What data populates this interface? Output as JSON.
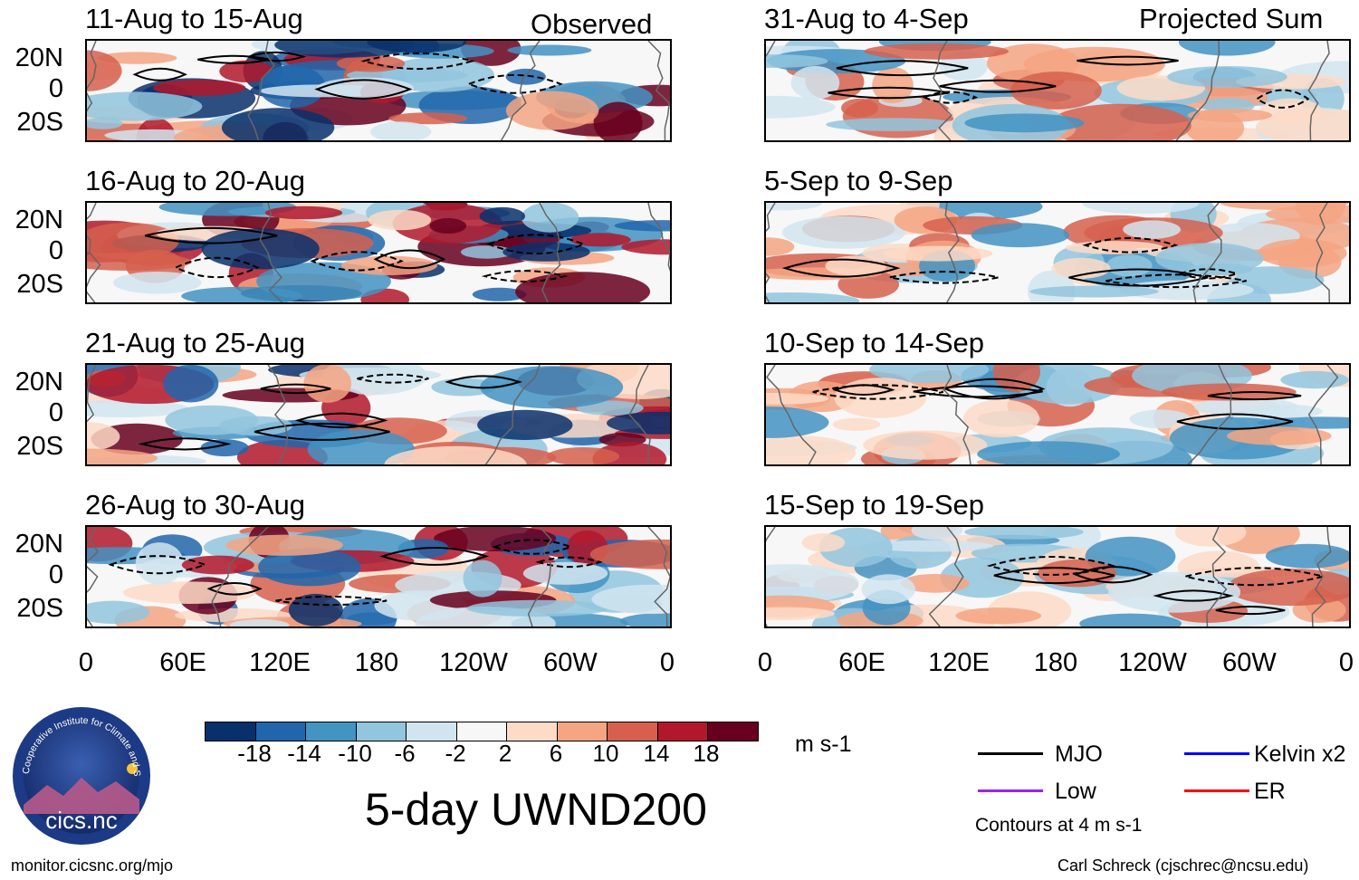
{
  "figure": {
    "title": "5-day UWND200",
    "units": "m s-1",
    "contour_note": "Contours at 4 m s-1",
    "observed_label": "Observed",
    "projected_label": "Projected Sum",
    "credit_url": "monitor.cicsnc.org/mjo",
    "credit_author": "Carl Schreck (cjschrec@ncsu.edu)",
    "logo_text": "cics.nc",
    "logo_ring_text": "Cooperative Institute for Climate and Satellites"
  },
  "chart_data": {
    "type": "heatmap",
    "variable": "200-hPa zonal wind anomaly",
    "units": "m s-1",
    "lat_ticks": [
      "20N",
      "0",
      "20S"
    ],
    "lon_ticks": [
      "0",
      "60E",
      "120E",
      "180",
      "120W",
      "60W",
      "0"
    ],
    "colorbar": {
      "levels": [
        "-18",
        "-14",
        "-10",
        "-6",
        "-2",
        "2",
        "6",
        "10",
        "14",
        "18"
      ],
      "colors": [
        "#08306b",
        "#2166ac",
        "#4393c3",
        "#92c5de",
        "#d1e5f0",
        "#f7f7f7",
        "#fddbc7",
        "#f4a582",
        "#d6604d",
        "#b2182b",
        "#67001f"
      ]
    },
    "contour_interval": "4 m s-1",
    "legend": [
      {
        "name": "MJO",
        "color": "#000000"
      },
      {
        "name": "Kelvin x2",
        "color": "#0000ff"
      },
      {
        "name": "Low",
        "color": "#a020f0"
      },
      {
        "name": "ER",
        "color": "#ff0000"
      }
    ],
    "observed_periods": [
      "11-Aug to 15-Aug",
      "16-Aug to 20-Aug",
      "21-Aug to 25-Aug",
      "26-Aug to 30-Aug"
    ],
    "projected_periods": [
      "31-Aug to 4-Sep",
      "5-Sep to 9-Sep",
      "10-Sep to 14-Sep",
      "15-Sep to 19-Sep"
    ]
  }
}
